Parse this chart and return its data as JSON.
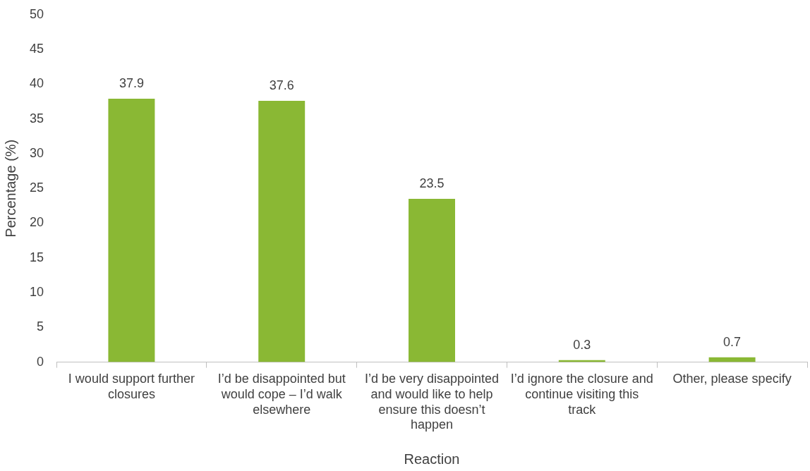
{
  "chart_data": {
    "type": "bar",
    "xlabel": "Reaction",
    "ylabel": "Percentage (%)",
    "categories": [
      "I would support further closures",
      "I’d be disappointed but would cope – I’d walk elsewhere",
      "I’d be very disappointed and would like to help ensure this doesn’t happen",
      "I’d ignore the closure and continue visiting this track",
      "Other, please specify"
    ],
    "values": [
      37.9,
      37.6,
      23.5,
      0.3,
      0.7
    ],
    "color": "#8ab834",
    "ylim": [
      0,
      50
    ],
    "yticks": [
      0,
      5,
      10,
      15,
      20,
      25,
      30,
      35,
      40,
      45,
      50
    ],
    "grid": false,
    "legend": false,
    "data_labels": true
  }
}
